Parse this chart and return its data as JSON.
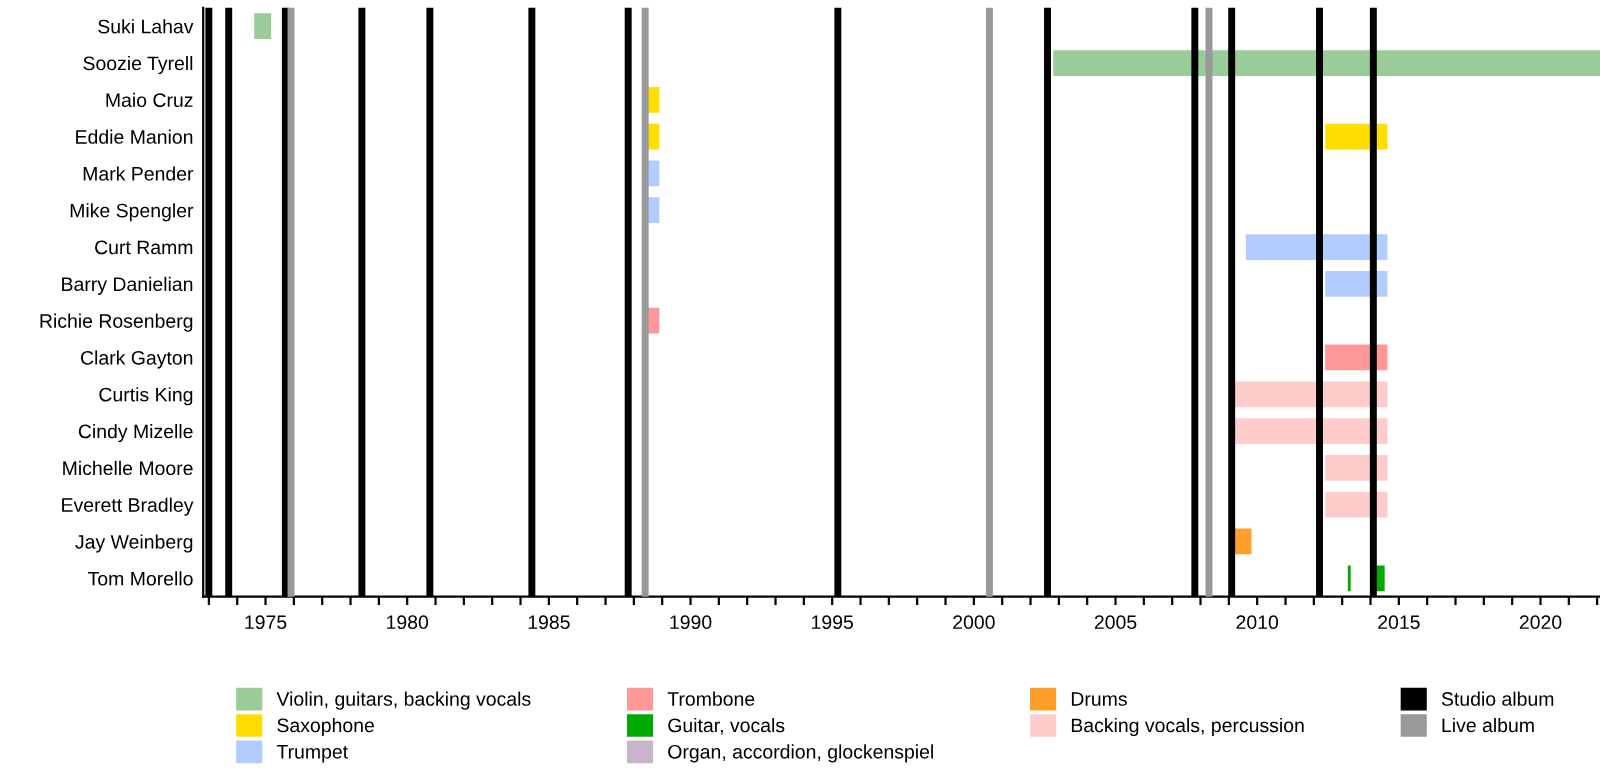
{
  "chart_data": {
    "type": "bar",
    "orientation": "horizontal",
    "legend": "bottom",
    "grid": false,
    "categories": [
      "Suki Lahav",
      "Soozie Tyrell",
      "Maio Cruz",
      "Eddie Manion",
      "Mark Pender",
      "Mike Spengler",
      "Curt Ramm",
      "Barry Danielian",
      "Richie Rosenberg",
      "Clark Gayton",
      "Curtis King",
      "Cindy Mizelle",
      "Michelle Moore",
      "Everett Bradley",
      "Jay Weinberg",
      "Tom Morello"
    ],
    "xlim": [
      1972.8,
      2022.1
    ],
    "xticks": [
      {
        "value": 1973,
        "label": null
      },
      {
        "value": 1974,
        "label": null
      },
      1975,
      {
        "value": 1976,
        "label": null
      },
      {
        "value": 1977,
        "label": null
      },
      {
        "value": 1978,
        "label": null
      },
      {
        "value": 1979,
        "label": null
      },
      1980,
      {
        "value": 1981,
        "label": null
      },
      {
        "value": 1982,
        "label": null
      },
      {
        "value": 1983,
        "label": null
      },
      {
        "value": 1984,
        "label": null
      },
      1985,
      {
        "value": 1986,
        "label": null
      },
      {
        "value": 1987,
        "label": null
      },
      {
        "value": 1988,
        "label": null
      },
      {
        "value": 1989,
        "label": null
      },
      1990,
      {
        "value": 1991,
        "label": null
      },
      {
        "value": 1992,
        "label": null
      },
      {
        "value": 1993,
        "label": null
      },
      {
        "value": 1994,
        "label": null
      },
      1995,
      {
        "value": 1996,
        "label": null
      },
      {
        "value": 1997,
        "label": null
      },
      {
        "value": 1998,
        "label": null
      },
      {
        "value": 1999,
        "label": null
      },
      2000,
      {
        "value": 2001,
        "label": null
      },
      {
        "value": 2002,
        "label": null
      },
      {
        "value": 2003,
        "label": null
      },
      {
        "value": 2004,
        "label": null
      },
      2005,
      {
        "value": 2006,
        "label": null
      },
      {
        "value": 2007,
        "label": null
      },
      {
        "value": 2008,
        "label": null
      },
      {
        "value": 2009,
        "label": null
      },
      2010,
      {
        "value": 2011,
        "label": null
      },
      {
        "value": 2012,
        "label": null
      },
      {
        "value": 2013,
        "label": null
      },
      {
        "value": 2014,
        "label": null
      },
      2015,
      {
        "value": 2016,
        "label": null
      },
      {
        "value": 2017,
        "label": null
      },
      {
        "value": 2018,
        "label": null
      },
      {
        "value": 2019,
        "label": null
      },
      2020,
      {
        "value": 2021,
        "label": null
      },
      {
        "value": 2022,
        "label": null
      }
    ],
    "series": [
      {
        "name": "Violin, guitars, backing vocals",
        "color": "#99cc99",
        "base": [
          1974.6,
          2002.8,
          null,
          null,
          null,
          null,
          null,
          null,
          null,
          null,
          null,
          null,
          null,
          null,
          null,
          null
        ],
        "values": [
          0.6,
          19.3,
          null,
          null,
          null,
          null,
          null,
          null,
          null,
          null,
          null,
          null,
          null,
          null,
          null,
          null
        ]
      },
      {
        "name": "Saxophone",
        "color": "#ffdd00",
        "base": [
          null,
          null,
          1988.3,
          1988.3,
          null,
          null,
          null,
          null,
          null,
          null,
          null,
          null,
          null,
          null,
          null,
          null
        ],
        "values": [
          null,
          null,
          0.6,
          0.6,
          null,
          null,
          null,
          null,
          null,
          null,
          null,
          null,
          null,
          null,
          null,
          null
        ]
      },
      {
        "name": "Trumpet",
        "color": "#b3ccff",
        "base": [
          null,
          null,
          null,
          null,
          1988.3,
          1988.3,
          2009.6,
          2012.4,
          null,
          null,
          null,
          null,
          null,
          null,
          null,
          null
        ],
        "values": [
          null,
          null,
          null,
          null,
          0.6,
          0.6,
          5.0,
          2.2,
          null,
          null,
          null,
          null,
          null,
          null,
          null,
          null
        ]
      },
      {
        "name": "Trombone",
        "color": "#ff9999",
        "base": [
          null,
          null,
          null,
          null,
          null,
          null,
          null,
          null,
          1988.3,
          2012.4,
          null,
          null,
          null,
          null,
          null,
          null
        ],
        "values": [
          null,
          null,
          null,
          null,
          null,
          null,
          null,
          null,
          0.6,
          2.2,
          null,
          null,
          null,
          null,
          null,
          null
        ]
      },
      {
        "name": "Guitar, vocals",
        "color": "#00aa00",
        "base": [
          null,
          null,
          null,
          null,
          null,
          null,
          null,
          null,
          null,
          null,
          null,
          null,
          null,
          null,
          null,
          2013.2
        ],
        "values": [
          null,
          null,
          null,
          null,
          null,
          null,
          null,
          null,
          null,
          null,
          null,
          null,
          null,
          null,
          null,
          0.1
        ]
      },
      {
        "name": "Organ, accordion, glockenspiel",
        "color": "#c8b4cc",
        "base": [
          null,
          null,
          null,
          null,
          null,
          null,
          null,
          null,
          null,
          null,
          null,
          null,
          null,
          null,
          null,
          null
        ],
        "values": [
          null,
          null,
          null,
          null,
          null,
          null,
          null,
          null,
          null,
          null,
          null,
          null,
          null,
          null,
          null,
          null
        ]
      },
      {
        "name": "Drums",
        "color": "#ff9f2a",
        "base": [
          null,
          null,
          null,
          null,
          null,
          null,
          null,
          null,
          null,
          null,
          null,
          null,
          null,
          null,
          2009.2,
          null
        ],
        "values": [
          null,
          null,
          null,
          null,
          null,
          null,
          null,
          null,
          null,
          null,
          null,
          null,
          null,
          null,
          0.6,
          null
        ]
      },
      {
        "name": "Backing vocals, percussion",
        "color": "#ffcccc",
        "base": [
          null,
          null,
          null,
          null,
          null,
          null,
          null,
          null,
          null,
          null,
          2009.2,
          2009.2,
          2012.4,
          2012.4,
          null,
          null
        ],
        "values": [
          null,
          null,
          null,
          null,
          null,
          null,
          null,
          null,
          null,
          null,
          5.4,
          5.4,
          2.2,
          2.2,
          null,
          null
        ]
      },
      {
        "color": "#ffdd00",
        "base": [
          null,
          null,
          null,
          2012.4,
          null,
          null,
          null,
          null,
          null,
          null,
          null,
          null,
          null,
          null,
          null,
          null
        ],
        "values": [
          null,
          null,
          null,
          2.2,
          null,
          null,
          null,
          null,
          null,
          null,
          null,
          null,
          null,
          null,
          null,
          null
        ]
      },
      {
        "color": "#00aa00",
        "base": [
          null,
          null,
          null,
          null,
          null,
          null,
          null,
          null,
          null,
          null,
          null,
          null,
          null,
          null,
          null,
          2014.1
        ],
        "values": [
          null,
          null,
          null,
          null,
          null,
          null,
          null,
          null,
          null,
          null,
          null,
          null,
          null,
          null,
          null,
          0.4
        ]
      }
    ],
    "ref_lines": [
      {
        "axis": "x",
        "value": 1973.0,
        "color": "#000000",
        "label": "Studio album"
      },
      {
        "axis": "x",
        "value": 1973.7,
        "color": "#000000"
      },
      {
        "axis": "x",
        "value": 1975.7,
        "color": "#000000"
      },
      {
        "axis": "x",
        "value": 1978.4,
        "color": "#000000"
      },
      {
        "axis": "x",
        "value": 1980.8,
        "color": "#000000"
      },
      {
        "axis": "x",
        "value": 1984.4,
        "color": "#000000"
      },
      {
        "axis": "x",
        "value": 1987.8,
        "color": "#000000"
      },
      {
        "axis": "x",
        "value": 1995.2,
        "color": "#000000"
      },
      {
        "axis": "x",
        "value": 2002.6,
        "color": "#000000"
      },
      {
        "axis": "x",
        "value": 2007.8,
        "color": "#000000"
      },
      {
        "axis": "x",
        "value": 2009.1,
        "color": "#000000"
      },
      {
        "axis": "x",
        "value": 2012.2,
        "color": "#000000"
      },
      {
        "axis": "x",
        "value": 2014.1,
        "color": "#000000"
      },
      {
        "axis": "x",
        "value": 1975.9,
        "color": "#999999",
        "label": "Live album"
      },
      {
        "axis": "x",
        "value": 1988.4,
        "color": "#999999"
      },
      {
        "axis": "x",
        "value": 2000.55,
        "color": "#999999"
      },
      {
        "axis": "x",
        "value": 2008.3,
        "color": "#999999"
      }
    ]
  }
}
